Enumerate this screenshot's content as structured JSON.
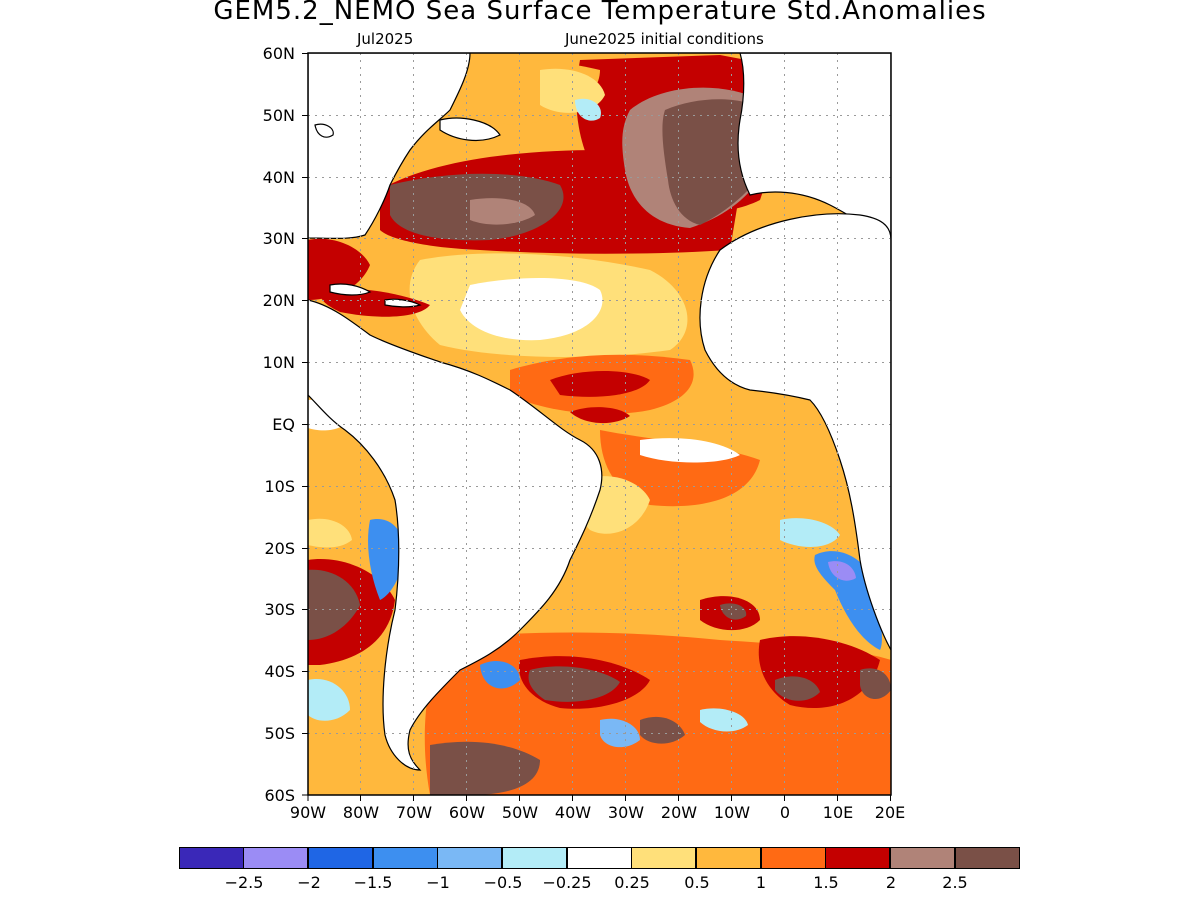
{
  "title": "GEM5.2_NEMO Sea Surface Temperature Std.Anomalies",
  "subtitle_left": "Jul2025",
  "subtitle_right": "June2025 initial conditions",
  "lat_labels": [
    "60N",
    "50N",
    "40N",
    "30N",
    "20N",
    "10N",
    "EQ",
    "10S",
    "20S",
    "30S",
    "40S",
    "50S",
    "60S"
  ],
  "lon_labels": [
    "90W",
    "80W",
    "70W",
    "60W",
    "50W",
    "40W",
    "30W",
    "20W",
    "10W",
    "0",
    "10E",
    "20E"
  ],
  "colorbar": {
    "colors": [
      "#3a28b8",
      "#9b8cf5",
      "#1f66e5",
      "#3d8ff0",
      "#7ab8f5",
      "#b3ecf7",
      "#ffffff",
      "#ffe07a",
      "#ffb83d",
      "#ff6a14",
      "#c40000",
      "#b08378",
      "#7a5047"
    ],
    "labels": [
      "−2.5",
      "−2",
      "−1.5",
      "−1",
      "−0.5",
      "−0.25",
      "0.25",
      "0.5",
      "1",
      "1.5",
      "2",
      "2.5"
    ]
  },
  "palette": {
    "land": "#ffffff",
    "coast": "#000000",
    "grid": "#9a9a9a",
    "gray": "#b08378",
    "brown": "#7a5047",
    "red": "#c40000",
    "orange": "#ff6a14",
    "amber": "#ffb83d",
    "yellow": "#ffe07a",
    "cyan": "#b3ecf7",
    "lightblue": "#7ab8f5",
    "blue": "#3d8ff0",
    "deepblue": "#1f66e5",
    "violet": "#9b8cf5"
  }
}
